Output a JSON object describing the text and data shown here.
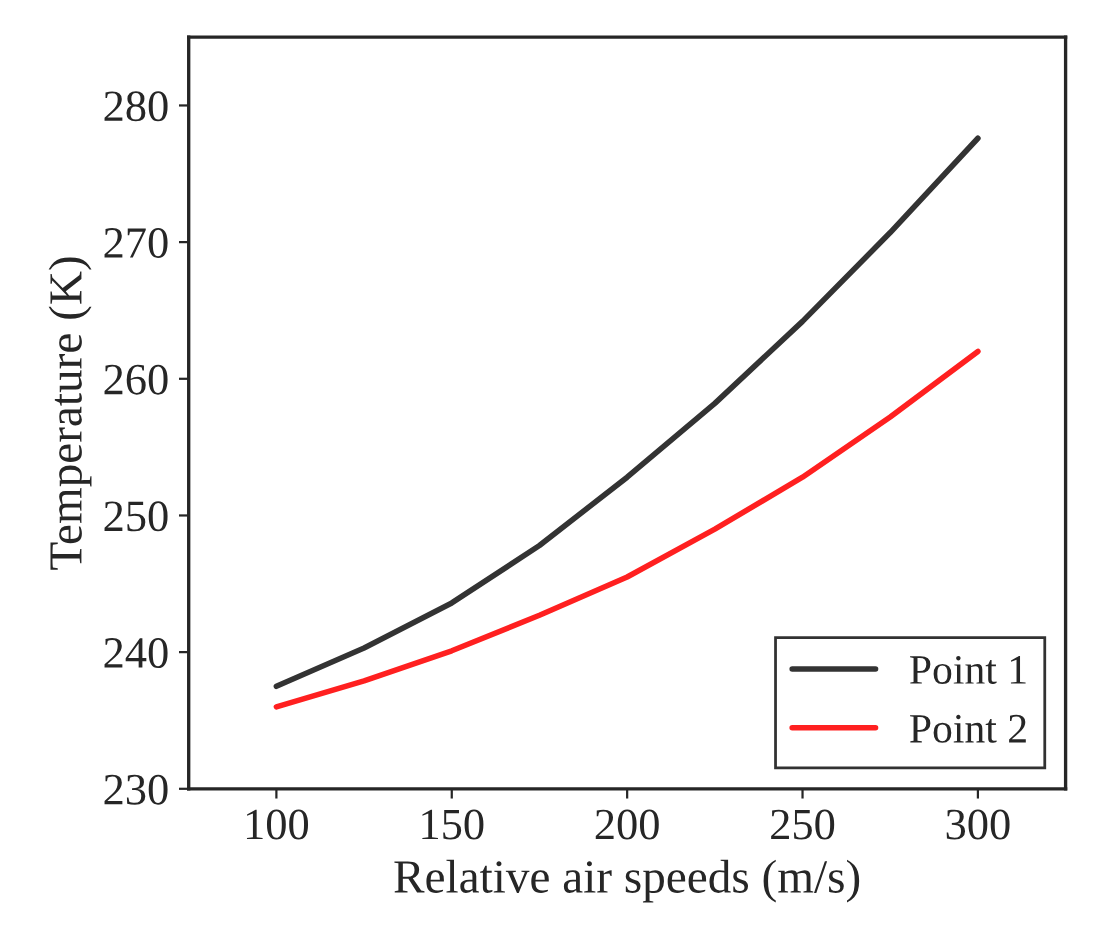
{
  "chart_data": {
    "type": "line",
    "xlabel": "Relative air speeds (m/s)",
    "ylabel": "Temperature (K)",
    "x": [
      100,
      125,
      150,
      175,
      200,
      225,
      250,
      275,
      300
    ],
    "series": [
      {
        "name": "Point 1",
        "color": "#333333",
        "values": [
          237.5,
          240.3,
          243.6,
          247.8,
          252.8,
          258.2,
          264.2,
          270.7,
          277.6
        ]
      },
      {
        "name": "Point 2",
        "color": "#ff2020",
        "values": [
          236,
          237.9,
          240.1,
          242.7,
          245.5,
          249,
          252.8,
          257.2,
          262
        ]
      }
    ],
    "xlim": [
      75,
      325
    ],
    "xticks": [
      100,
      150,
      200,
      250,
      300
    ],
    "ylim": [
      230,
      285
    ],
    "yticks": [
      230,
      240,
      250,
      260,
      270,
      280
    ],
    "grid": false,
    "legend": "lower right",
    "marker": "none",
    "line_style": "solid"
  }
}
